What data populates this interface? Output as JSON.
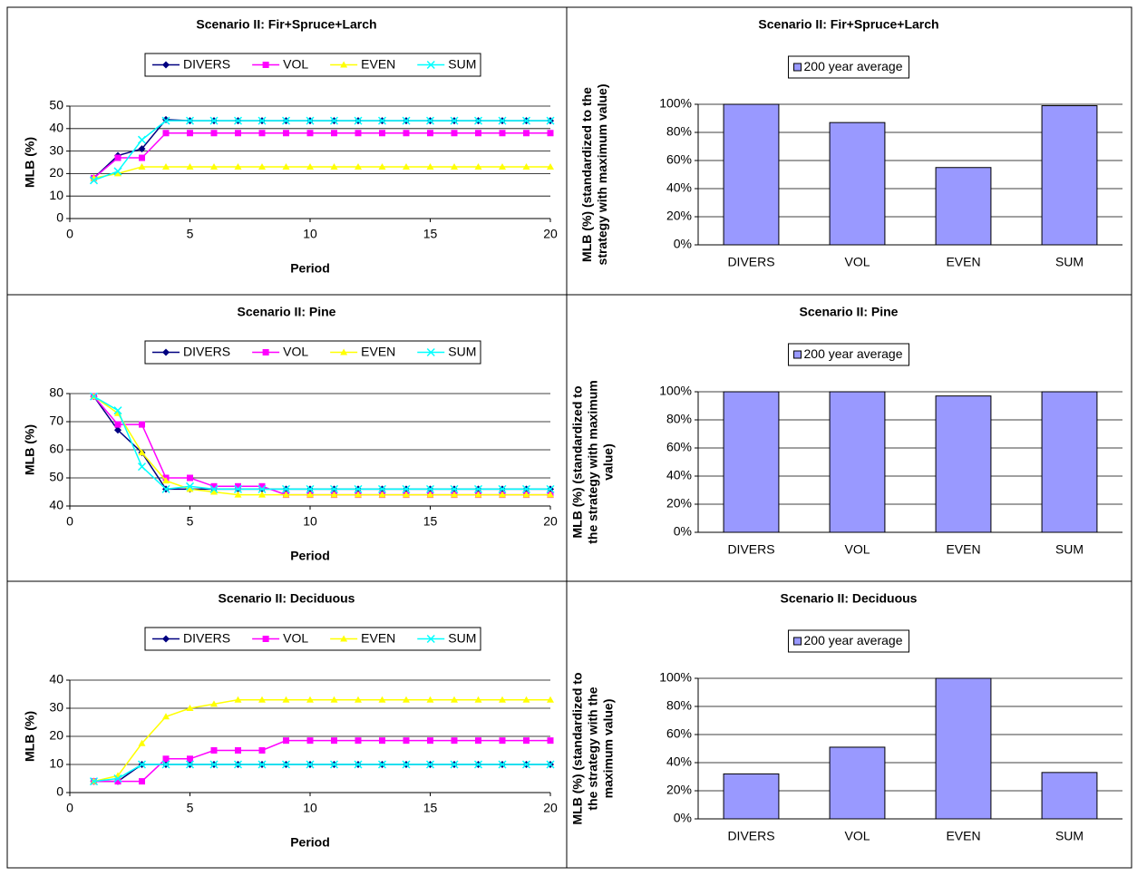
{
  "chart_data": [
    {
      "type": "line",
      "title": "Scenario II: Fir+Spruce+Larch",
      "ylabel": "MLB (%)",
      "xlabel": "Period",
      "x": [
        1,
        2,
        3,
        4,
        5,
        6,
        7,
        8,
        9,
        10,
        11,
        12,
        13,
        14,
        15,
        16,
        17,
        18,
        19,
        20
      ],
      "xlim": [
        0,
        20
      ],
      "xticks": [
        0,
        5,
        10,
        15,
        20
      ],
      "ylim": [
        0,
        50
      ],
      "yticks": [
        0,
        10,
        20,
        30,
        40,
        50
      ],
      "grid": true,
      "series": [
        {
          "name": "DIVERS",
          "color": "#000080",
          "marker": "diamond",
          "values": [
            18,
            28,
            31,
            44,
            43.5,
            43.5,
            43.5,
            43.5,
            43.5,
            43.5,
            43.5,
            43.5,
            43.5,
            43.5,
            43.5,
            43.5,
            43.5,
            43.5,
            43.5,
            43.5
          ]
        },
        {
          "name": "VOL",
          "color": "#ff00ff",
          "marker": "square",
          "values": [
            18,
            27,
            27,
            38,
            38,
            38,
            38,
            38,
            38,
            38,
            38,
            38,
            38,
            38,
            38,
            38,
            38,
            38,
            38,
            38
          ]
        },
        {
          "name": "EVEN",
          "color": "#ffff00",
          "marker": "triangle",
          "values": [
            18,
            20,
            23,
            23,
            23,
            23,
            23,
            23,
            23,
            23,
            23,
            23,
            23,
            23,
            23,
            23,
            23,
            23,
            23,
            23
          ]
        },
        {
          "name": "SUM",
          "color": "#00ffff",
          "marker": "x",
          "values": [
            17,
            21,
            35,
            43.5,
            43.5,
            43.5,
            43.5,
            43.5,
            43.5,
            43.5,
            43.5,
            43.5,
            43.5,
            43.5,
            43.5,
            43.5,
            43.5,
            43.5,
            43.5,
            43.5
          ]
        }
      ]
    },
    {
      "type": "bar",
      "title": "Scenario II: Fir+Spruce+Larch",
      "ylabel": [
        "MLB (%) (standardized to the",
        "strategy with maximum value)"
      ],
      "categories": [
        "DIVERS",
        "VOL",
        "EVEN",
        "SUM"
      ],
      "series": [
        {
          "name": "200 year average",
          "color": "#9999ff",
          "values": [
            100,
            87,
            55,
            99
          ]
        }
      ],
      "ylim": [
        0,
        100
      ],
      "yticks": [
        {
          "value": 0,
          "label": "0%"
        },
        {
          "value": 20,
          "label": "20%"
        },
        {
          "value": 40,
          "label": "40%"
        },
        {
          "value": 60,
          "label": "60%"
        },
        {
          "value": 80,
          "label": "80%"
        },
        {
          "value": 100,
          "label": "100%"
        }
      ],
      "grid": true
    },
    {
      "type": "line",
      "title": "Scenario II: Pine",
      "ylabel": "MLB (%)",
      "xlabel": "Period",
      "x": [
        1,
        2,
        3,
        4,
        5,
        6,
        7,
        8,
        9,
        10,
        11,
        12,
        13,
        14,
        15,
        16,
        17,
        18,
        19,
        20
      ],
      "xlim": [
        0,
        20
      ],
      "xticks": [
        0,
        5,
        10,
        15,
        20
      ],
      "ylim": [
        40,
        80
      ],
      "yticks": [
        40,
        50,
        60,
        70,
        80
      ],
      "grid": true,
      "series": [
        {
          "name": "DIVERS",
          "color": "#000080",
          "marker": "diamond",
          "values": [
            79,
            67,
            59,
            46,
            46,
            46,
            46,
            46,
            46,
            46,
            46,
            46,
            46,
            46,
            46,
            46,
            46,
            46,
            46,
            46
          ]
        },
        {
          "name": "VOL",
          "color": "#ff00ff",
          "marker": "square",
          "values": [
            79,
            69,
            69,
            50,
            50,
            47,
            47,
            47,
            44,
            44,
            44,
            44,
            44,
            44,
            44,
            44,
            44,
            44,
            44,
            44
          ]
        },
        {
          "name": "EVEN",
          "color": "#ffff00",
          "marker": "triangle",
          "values": [
            79,
            73,
            59,
            49,
            46,
            45,
            44,
            44,
            44,
            44,
            44,
            44,
            44,
            44,
            44,
            44,
            44,
            44,
            44,
            44
          ]
        },
        {
          "name": "SUM",
          "color": "#00ffff",
          "marker": "x",
          "values": [
            79,
            74,
            54,
            46,
            47,
            46,
            46,
            46,
            46,
            46,
            46,
            46,
            46,
            46,
            46,
            46,
            46,
            46,
            46,
            46
          ]
        }
      ]
    },
    {
      "type": "bar",
      "title": "Scenario II: Pine",
      "ylabel": [
        "MLB (%) (standardized to",
        "the strategy with maximum",
        "value)"
      ],
      "categories": [
        "DIVERS",
        "VOL",
        "EVEN",
        "SUM"
      ],
      "series": [
        {
          "name": "200 year average",
          "color": "#9999ff",
          "values": [
            100,
            100,
            97,
            100
          ]
        }
      ],
      "ylim": [
        0,
        100
      ],
      "yticks": [
        {
          "value": 0,
          "label": "0%"
        },
        {
          "value": 20,
          "label": "20%"
        },
        {
          "value": 40,
          "label": "40%"
        },
        {
          "value": 60,
          "label": "60%"
        },
        {
          "value": 80,
          "label": "80%"
        },
        {
          "value": 100,
          "label": "100%"
        }
      ],
      "grid": true
    },
    {
      "type": "line",
      "title": "Scenario II: Deciduous",
      "ylabel": "MLB (%)",
      "xlabel": "Period",
      "x": [
        1,
        2,
        3,
        4,
        5,
        6,
        7,
        8,
        9,
        10,
        11,
        12,
        13,
        14,
        15,
        16,
        17,
        18,
        19,
        20
      ],
      "xlim": [
        0,
        20
      ],
      "xticks": [
        0,
        5,
        10,
        15,
        20
      ],
      "ylim": [
        0,
        40
      ],
      "yticks": [
        0,
        10,
        20,
        30,
        40
      ],
      "grid": true,
      "series": [
        {
          "name": "DIVERS",
          "color": "#000080",
          "marker": "diamond",
          "values": [
            4,
            4,
            10,
            10,
            10,
            10,
            10,
            10,
            10,
            10,
            10,
            10,
            10,
            10,
            10,
            10,
            10,
            10,
            10,
            10
          ]
        },
        {
          "name": "VOL",
          "color": "#ff00ff",
          "marker": "square",
          "values": [
            4,
            4,
            4,
            12,
            12,
            15,
            15,
            15,
            18.5,
            18.5,
            18.5,
            18.5,
            18.5,
            18.5,
            18.5,
            18.5,
            18.5,
            18.5,
            18.5,
            18.5
          ]
        },
        {
          "name": "EVEN",
          "color": "#ffff00",
          "marker": "triangle",
          "values": [
            4,
            6,
            17.5,
            27,
            30,
            31.5,
            33,
            33,
            33,
            33,
            33,
            33,
            33,
            33,
            33,
            33,
            33,
            33,
            33,
            33
          ]
        },
        {
          "name": "SUM",
          "color": "#00ffff",
          "marker": "x",
          "values": [
            4,
            5,
            10,
            10,
            10,
            10,
            10,
            10,
            10,
            10,
            10,
            10,
            10,
            10,
            10,
            10,
            10,
            10,
            10,
            10
          ]
        }
      ]
    },
    {
      "type": "bar",
      "title": "Scenario II: Deciduous",
      "ylabel": [
        "MLB (%) (standardized to",
        "the strategy with the",
        "maximum value)"
      ],
      "categories": [
        "DIVERS",
        "VOL",
        "EVEN",
        "SUM"
      ],
      "series": [
        {
          "name": "200 year average",
          "color": "#9999ff",
          "values": [
            32,
            51,
            100,
            33
          ]
        }
      ],
      "ylim": [
        0,
        100
      ],
      "yticks": [
        {
          "value": 0,
          "label": "0%"
        },
        {
          "value": 20,
          "label": "20%"
        },
        {
          "value": 40,
          "label": "40%"
        },
        {
          "value": 60,
          "label": "60%"
        },
        {
          "value": 80,
          "label": "80%"
        },
        {
          "value": 100,
          "label": "100%"
        }
      ],
      "grid": true
    }
  ]
}
